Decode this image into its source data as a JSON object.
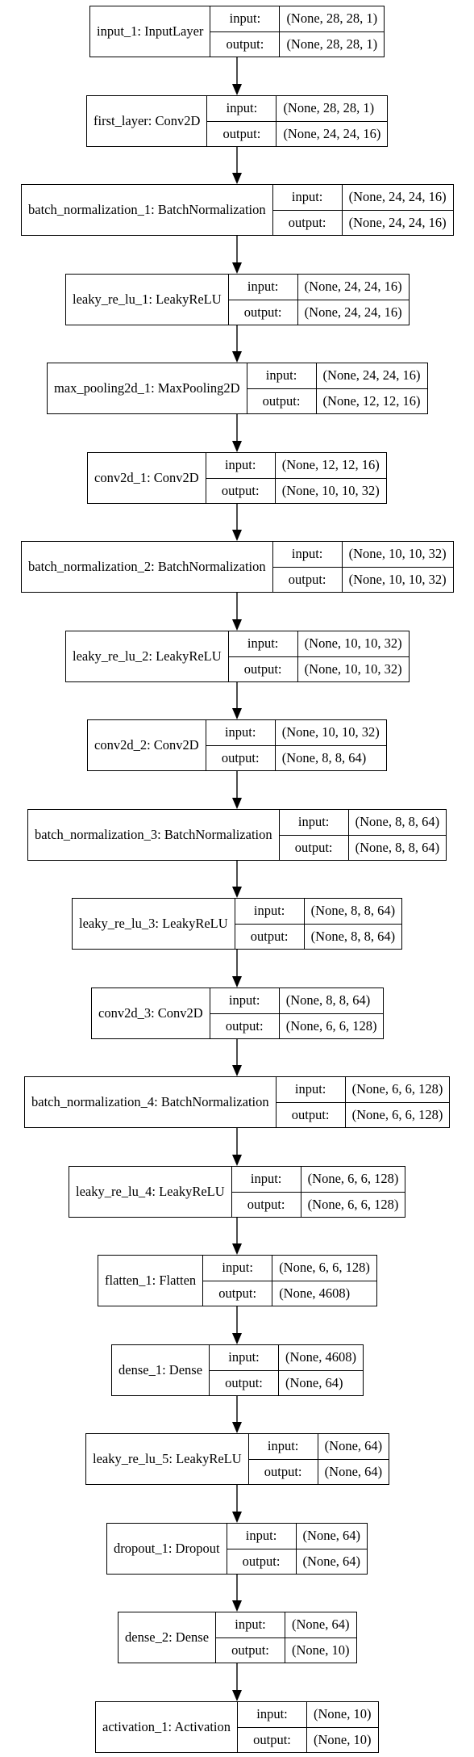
{
  "diagram": {
    "io_labels": {
      "input": "input:",
      "output": "output:"
    },
    "layers": [
      {
        "name": "input_1: InputLayer",
        "input": "(None, 28, 28, 1)",
        "output": "(None, 28, 28, 1)"
      },
      {
        "name": "first_layer: Conv2D",
        "input": "(None, 28, 28, 1)",
        "output": "(None, 24, 24, 16)"
      },
      {
        "name": "batch_normalization_1: BatchNormalization",
        "input": "(None, 24, 24, 16)",
        "output": "(None, 24, 24, 16)"
      },
      {
        "name": "leaky_re_lu_1: LeakyReLU",
        "input": "(None, 24, 24, 16)",
        "output": "(None, 24, 24, 16)"
      },
      {
        "name": "max_pooling2d_1: MaxPooling2D",
        "input": "(None, 24, 24, 16)",
        "output": "(None, 12, 12, 16)"
      },
      {
        "name": "conv2d_1: Conv2D",
        "input": "(None, 12, 12, 16)",
        "output": "(None, 10, 10, 32)"
      },
      {
        "name": "batch_normalization_2: BatchNormalization",
        "input": "(None, 10, 10, 32)",
        "output": "(None, 10, 10, 32)"
      },
      {
        "name": "leaky_re_lu_2: LeakyReLU",
        "input": "(None, 10, 10, 32)",
        "output": "(None, 10, 10, 32)"
      },
      {
        "name": "conv2d_2: Conv2D",
        "input": "(None, 10, 10, 32)",
        "output": "(None, 8, 8, 64)"
      },
      {
        "name": "batch_normalization_3: BatchNormalization",
        "input": "(None, 8, 8, 64)",
        "output": "(None, 8, 8, 64)"
      },
      {
        "name": "leaky_re_lu_3: LeakyReLU",
        "input": "(None, 8, 8, 64)",
        "output": "(None, 8, 8, 64)"
      },
      {
        "name": "conv2d_3: Conv2D",
        "input": "(None, 8, 8, 64)",
        "output": "(None, 6, 6, 128)"
      },
      {
        "name": "batch_normalization_4: BatchNormalization",
        "input": "(None, 6, 6, 128)",
        "output": "(None, 6, 6, 128)"
      },
      {
        "name": "leaky_re_lu_4: LeakyReLU",
        "input": "(None, 6, 6, 128)",
        "output": "(None, 6, 6, 128)"
      },
      {
        "name": "flatten_1: Flatten",
        "input": "(None, 6, 6, 128)",
        "output": "(None, 4608)"
      },
      {
        "name": "dense_1: Dense",
        "input": "(None, 4608)",
        "output": "(None, 64)"
      },
      {
        "name": "leaky_re_lu_5: LeakyReLU",
        "input": "(None, 64)",
        "output": "(None, 64)"
      },
      {
        "name": "dropout_1: Dropout",
        "input": "(None, 64)",
        "output": "(None, 64)"
      },
      {
        "name": "dense_2: Dense",
        "input": "(None, 64)",
        "output": "(None, 10)"
      },
      {
        "name": "activation_1: Activation",
        "input": "(None, 10)",
        "output": "(None, 10)"
      }
    ]
  }
}
